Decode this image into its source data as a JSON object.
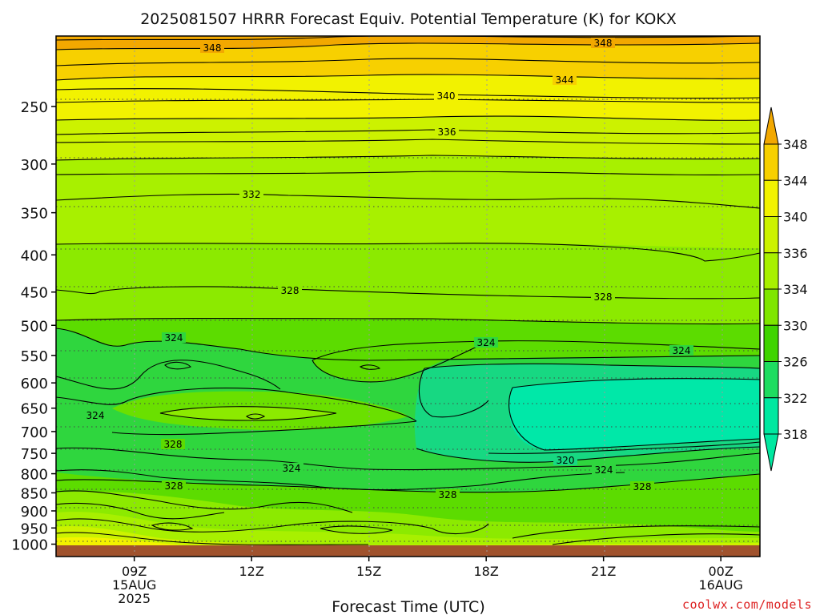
{
  "title": "2025081507 HRRR Forecast Equiv. Potential Temperature (K) for KOKX",
  "watermark": "coolwx.com/models",
  "chart_data": {
    "type": "contour",
    "title": "2025081507 HRRR Forecast Equiv. Potential Temperature (K) for KOKX",
    "xlabel": "Forecast Time (UTC)",
    "ylabel": "",
    "y_scale": "log (pressure, hPa)",
    "y_range": [
      200,
      1040
    ],
    "x_range": [
      "15AUG 2025 07Z",
      "16AUG 01Z"
    ],
    "y_ticks": [
      "250",
      "300",
      "350",
      "400",
      "450",
      "500",
      "550",
      "600",
      "650",
      "700",
      "750",
      "800",
      "850",
      "900",
      "950",
      "1000"
    ],
    "x_ticks": [
      {
        "line1": "09Z",
        "line2": "15AUG",
        "line3": "2025"
      },
      {
        "line1": "12Z",
        "line2": "",
        "line3": ""
      },
      {
        "line1": "15Z",
        "line2": "",
        "line3": ""
      },
      {
        "line1": "18Z",
        "line2": "",
        "line3": ""
      },
      {
        "line1": "21Z",
        "line2": "",
        "line3": ""
      },
      {
        "line1": "00Z",
        "line2": "16AUG",
        "line3": ""
      }
    ],
    "grid": "dotted",
    "colorbar": {
      "placement": "right",
      "levels": [
        "348",
        "344",
        "340",
        "336",
        "334",
        "330",
        "326",
        "322",
        "318"
      ],
      "colors": [
        "#f2a800",
        "#f7d000",
        "#f2f200",
        "#ccf200",
        "#a8f000",
        "#7fe600",
        "#3fd400",
        "#1edc60",
        "#00e8a0"
      ]
    },
    "contour_labels": [
      "348",
      "348",
      "344",
      "340",
      "336",
      "332",
      "328",
      "328",
      "324",
      "324",
      "324",
      "324",
      "328",
      "324",
      "320",
      "324",
      "328",
      "328",
      "328"
    ],
    "ground_color": "#a0522d"
  }
}
